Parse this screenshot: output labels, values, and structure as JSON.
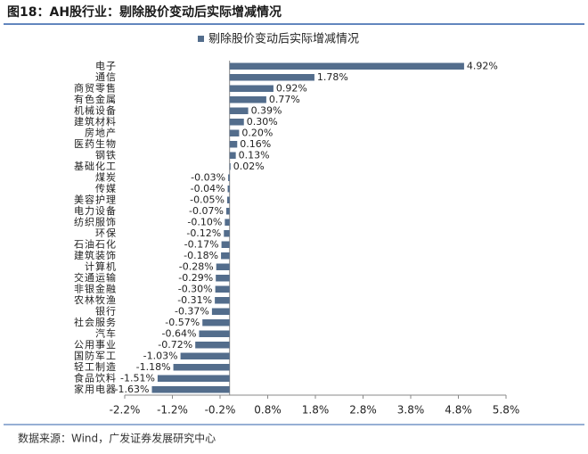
{
  "chart_data": {
    "type": "bar",
    "orientation": "horizontal",
    "title": "图18：AH股行业：剔除股价变动后实际增减情况",
    "source": "数据来源：Wind，广发证券发展研究中心",
    "categories": [
      "电子",
      "通信",
      "商贸零售",
      "有色金属",
      "机械设备",
      "建筑材料",
      "房地产",
      "医药生物",
      "钢铁",
      "基础化工",
      "煤炭",
      "传媒",
      "美容护理",
      "电力设备",
      "纺织服饰",
      "环保",
      "石油石化",
      "建筑装饰",
      "计算机",
      "交通运输",
      "非银金融",
      "农林牧渔",
      "银行",
      "社会服务",
      "汽车",
      "公用事业",
      "国防军工",
      "轻工制造",
      "食品饮料",
      "家用电器"
    ],
    "series": [
      {
        "name": "剔除股价变动后实际增减情况",
        "color": "#536d8c",
        "values": [
          4.92,
          1.78,
          0.92,
          0.77,
          0.39,
          0.3,
          0.2,
          0.16,
          0.13,
          0.02,
          -0.03,
          -0.04,
          -0.05,
          -0.07,
          -0.1,
          -0.12,
          -0.17,
          -0.18,
          -0.28,
          -0.29,
          -0.3,
          -0.31,
          -0.37,
          -0.57,
          -0.64,
          -0.72,
          -1.03,
          -1.18,
          -1.51,
          -1.63
        ],
        "value_labels": [
          "4.92%",
          "1.78%",
          "0.92%",
          "0.77%",
          "0.39%",
          "0.30%",
          "0.20%",
          "0.16%",
          "0.13%",
          "0.02%",
          "-0.03%",
          "-0.04%",
          "-0.05%",
          "-0.07%",
          "-0.10%",
          "-0.12%",
          "-0.17%",
          "-0.18%",
          "-0.28%",
          "-0.29%",
          "-0.30%",
          "-0.31%",
          "-0.37%",
          "-0.57%",
          "-0.64%",
          "-0.72%",
          "-1.03%",
          "-1.18%",
          "-1.51%",
          "-1.63%"
        ]
      }
    ],
    "xlim": [
      -2.2,
      5.8
    ],
    "xticks": [
      {
        "value": -2.2,
        "label": "-2.2%"
      },
      {
        "value": -1.2,
        "label": "-1.2%"
      },
      {
        "value": -0.2,
        "label": "-0.2%"
      },
      {
        "value": 0.8,
        "label": "0.8%"
      },
      {
        "value": 1.8,
        "label": "1.8%"
      },
      {
        "value": 2.8,
        "label": "2.8%"
      },
      {
        "value": 3.8,
        "label": "3.8%"
      },
      {
        "value": 4.8,
        "label": "4.8%"
      },
      {
        "value": 5.8,
        "label": "5.8%"
      }
    ],
    "legend": "top"
  }
}
